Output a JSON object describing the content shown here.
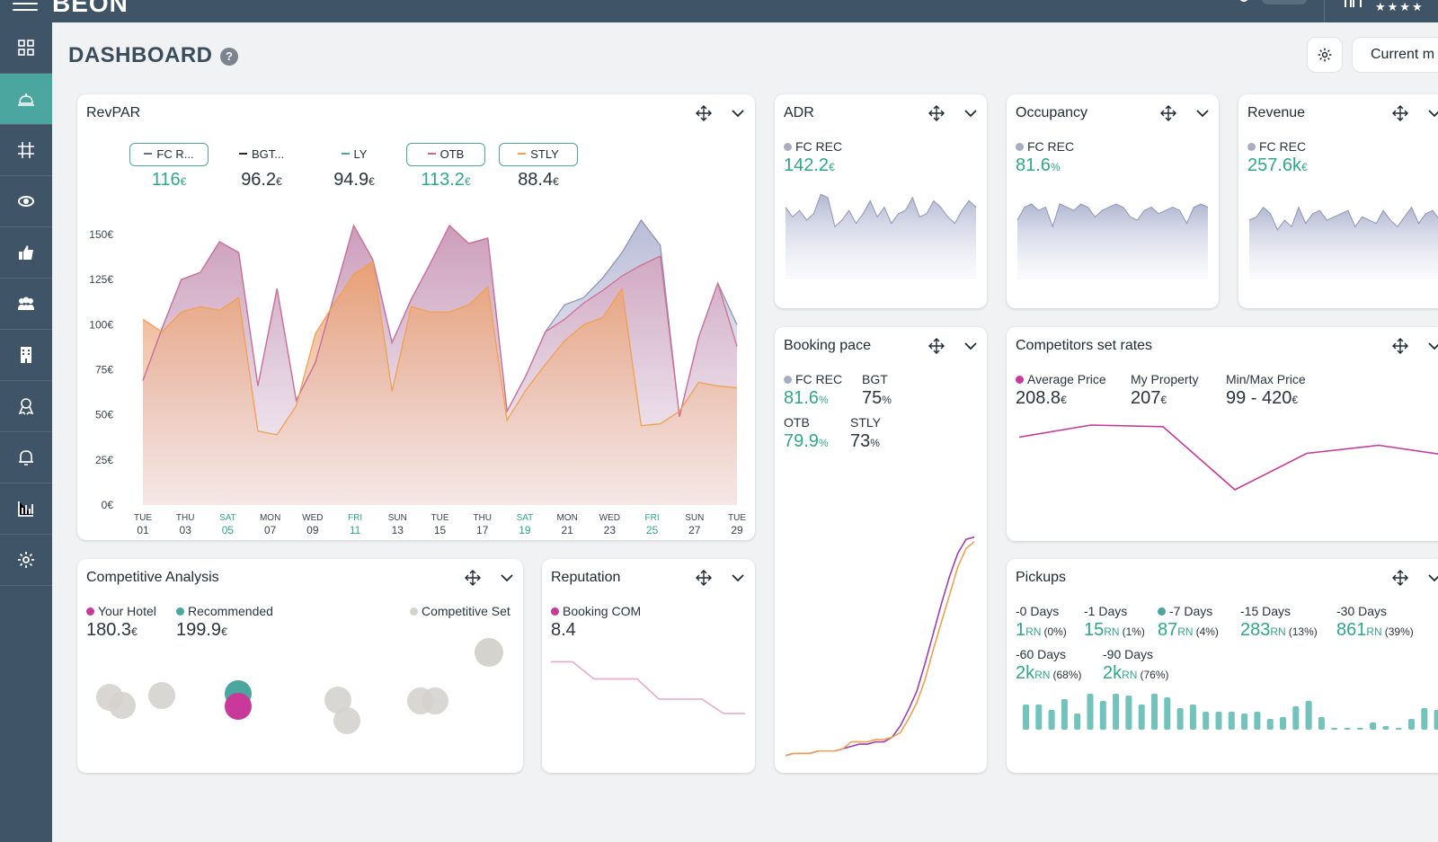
{
  "topbar": {
    "logo": "BEON",
    "stars": "★★★★"
  },
  "sidebar": {
    "items": [
      "dashboard",
      "reception-bell",
      "grid",
      "money",
      "thumbs-up",
      "users",
      "building",
      "award",
      "alarm",
      "bar-chart",
      "settings"
    ]
  },
  "header": {
    "title": "DASHBOARD",
    "help": "?",
    "current_button": "Current m"
  },
  "revpar": {
    "title": "RevPAR",
    "tabs": [
      {
        "label": "FC R...",
        "value": "116",
        "unit": "€",
        "color": "#5c6e99",
        "selected": true,
        "teal": true
      },
      {
        "label": "BGT...",
        "value": "96.2",
        "unit": "€",
        "color": "#1f2a33",
        "selected": false,
        "teal": false
      },
      {
        "label": "LY",
        "value": "94.9",
        "unit": "€",
        "color": "#4aa69f",
        "selected": false,
        "teal": false
      },
      {
        "label": "OTB",
        "value": "113.2",
        "unit": "€",
        "color": "#d0668e",
        "selected": true,
        "teal": true
      },
      {
        "label": "STLY",
        "value": "88.4",
        "unit": "€",
        "color": "#f0a050",
        "selected": true,
        "teal": false
      }
    ]
  },
  "chart_data": {
    "type": "area",
    "title": "RevPAR",
    "y_ticks": [
      "150€",
      "125€",
      "100€",
      "75€",
      "50€",
      "25€",
      "0€"
    ],
    "ylim": [
      0,
      150
    ],
    "x_ticks": [
      {
        "day": "TUE",
        "date": "01",
        "weekend": false
      },
      {
        "day": "THU",
        "date": "03",
        "weekend": false
      },
      {
        "day": "SAT",
        "date": "05",
        "weekend": true
      },
      {
        "day": "MON",
        "date": "07",
        "weekend": false
      },
      {
        "day": "WED",
        "date": "09",
        "weekend": false
      },
      {
        "day": "FRI",
        "date": "11",
        "weekend": true
      },
      {
        "day": "SUN",
        "date": "13",
        "weekend": false
      },
      {
        "day": "TUE",
        "date": "15",
        "weekend": false
      },
      {
        "day": "THU",
        "date": "17",
        "weekend": false
      },
      {
        "day": "SAT",
        "date": "19",
        "weekend": true
      },
      {
        "day": "MON",
        "date": "21",
        "weekend": false
      },
      {
        "day": "WED",
        "date": "23",
        "weekend": false
      },
      {
        "day": "FRI",
        "date": "25",
        "weekend": true
      },
      {
        "day": "SUN",
        "date": "27",
        "weekend": false
      },
      {
        "day": "TUE",
        "date": "29",
        "weekend": false
      }
    ],
    "series": [
      {
        "name": "FC REC",
        "color": "#8e95b8",
        "values": [
          69,
          98,
          125,
          129,
          146,
          140,
          66,
          120,
          58,
          79,
          117,
          155,
          136,
          90,
          114,
          134,
          155,
          145,
          148,
          52,
          72,
          96,
          111,
          115,
          126,
          140,
          158,
          144,
          49,
          93,
          123,
          100
        ]
      },
      {
        "name": "OTB",
        "color": "#d06e95",
        "values": [
          69,
          98,
          125,
          129,
          146,
          140,
          66,
          120,
          58,
          79,
          117,
          155,
          136,
          90,
          114,
          134,
          155,
          145,
          148,
          52,
          72,
          96,
          103,
          112,
          119,
          127,
          133,
          138,
          49,
          93,
          123,
          88
        ]
      },
      {
        "name": "STLY",
        "color": "#f0a050",
        "values": [
          103,
          96,
          107,
          110,
          108,
          115,
          41,
          39,
          55,
          95,
          112,
          128,
          135,
          63,
          110,
          107,
          107,
          111,
          121,
          47,
          64,
          78,
          91,
          100,
          104,
          120,
          44,
          45,
          52,
          68,
          66,
          65
        ]
      }
    ]
  },
  "adr": {
    "title": "ADR",
    "legend": "FC REC",
    "value": "142.2",
    "unit": "€",
    "spark": [
      0.3,
      0.45,
      0.35,
      0.5,
      0.4,
      0.1,
      0.15,
      0.6,
      0.5,
      0.35,
      0.55,
      0.4,
      0.2,
      0.45,
      0.3,
      0.55,
      0.4,
      0.35,
      0.15,
      0.45,
      0.4,
      0.2,
      0.3,
      0.45,
      0.55,
      0.35,
      0.2,
      0.3
    ]
  },
  "occupancy": {
    "title": "Occupancy",
    "legend": "FC REC",
    "value": "81.6",
    "unit": "%",
    "spark": [
      0.5,
      0.3,
      0.25,
      0.35,
      0.3,
      0.6,
      0.25,
      0.3,
      0.35,
      0.25,
      0.3,
      0.45,
      0.35,
      0.3,
      0.25,
      0.3,
      0.45,
      0.5,
      0.35,
      0.3,
      0.4,
      0.35,
      0.3,
      0.35,
      0.55,
      0.3,
      0.25,
      0.3
    ]
  },
  "revenue": {
    "title": "Revenue",
    "legend": "FC REC",
    "value": "257.6k",
    "unit": "€",
    "spark": [
      0.5,
      0.45,
      0.3,
      0.4,
      0.65,
      0.5,
      0.6,
      0.3,
      0.55,
      0.4,
      0.35,
      0.5,
      0.45,
      0.4,
      0.35,
      0.6,
      0.45,
      0.5,
      0.55,
      0.35,
      0.5,
      0.6,
      0.45,
      0.3,
      0.55,
      0.4,
      0.35,
      0.5
    ]
  },
  "booking_pace": {
    "title": "Booking pace",
    "stats": [
      {
        "label": "FC REC",
        "value": "81.6",
        "unit": "%",
        "teal": true,
        "dot": true
      },
      {
        "label": "BGT",
        "value": "75",
        "unit": "%",
        "teal": false,
        "dot": false
      },
      {
        "label": "OTB",
        "value": "79.9",
        "unit": "%",
        "teal": true,
        "dot": false
      },
      {
        "label": "STLY",
        "value": "73",
        "unit": "%",
        "teal": false,
        "dot": false
      }
    ],
    "series": [
      {
        "name": "OTB",
        "color": "#9c3fb0",
        "values": [
          0.02,
          0.03,
          0.03,
          0.03,
          0.04,
          0.04,
          0.04,
          0.05,
          0.06,
          0.07,
          0.07,
          0.08,
          0.08,
          0.1,
          0.15,
          0.22,
          0.3,
          0.42,
          0.55,
          0.68,
          0.8,
          0.9,
          0.96,
          0.97
        ]
      },
      {
        "name": "STLY",
        "color": "#f0a050",
        "values": [
          0.02,
          0.03,
          0.03,
          0.03,
          0.04,
          0.04,
          0.04,
          0.05,
          0.08,
          0.08,
          0.08,
          0.09,
          0.09,
          0.1,
          0.12,
          0.18,
          0.25,
          0.35,
          0.48,
          0.6,
          0.72,
          0.84,
          0.92,
          0.95
        ]
      }
    ]
  },
  "competitors": {
    "title": "Competitors set rates",
    "stats": [
      {
        "label": "Average Price",
        "value": "208.8",
        "unit": "€",
        "dot": true
      },
      {
        "label": "My Property",
        "value": "207",
        "unit": "€",
        "dot": false
      },
      {
        "label": "Min/Max Price",
        "value": "99 - 420",
        "unit": "€",
        "dot": false
      }
    ],
    "line": [
      0.25,
      0.1,
      0.12,
      0.9,
      0.45,
      0.35,
      0.48
    ]
  },
  "competitive_analysis": {
    "title": "Competitive Analysis",
    "legend": [
      {
        "label": "Your Hotel",
        "color": "#c8399a",
        "value": "180.3",
        "unit": "€"
      },
      {
        "label": "Recommended",
        "color": "#4aa69f",
        "value": "199.9",
        "unit": "€"
      }
    ],
    "set_label": "Competitive Set"
  },
  "reputation": {
    "title": "Reputation",
    "legend": "Booking COM",
    "value": "8.4",
    "line": [
      0.1,
      0.1,
      0.4,
      0.4,
      0.4,
      0.75,
      0.75,
      0.75,
      1.0,
      1.0
    ]
  },
  "pickups": {
    "title": "Pickups",
    "items": [
      {
        "label": "-0 Days",
        "value": "1",
        "unit": "RN",
        "pct": "(0%)",
        "dot": false
      },
      {
        "label": "-1 Days",
        "value": "15",
        "unit": "RN",
        "pct": "(1%)",
        "dot": false
      },
      {
        "label": "-7 Days",
        "value": "87",
        "unit": "RN",
        "pct": "(4%)",
        "dot": true
      },
      {
        "label": "-15 Days",
        "value": "283",
        "unit": "RN",
        "pct": "(13%)",
        "dot": false
      },
      {
        "label": "-30 Days",
        "value": "861",
        "unit": "RN",
        "pct": "(39%)",
        "dot": false
      },
      {
        "label": "-60 Days",
        "value": "2k",
        "unit": "RN",
        "pct": "(68%)",
        "dot": false
      },
      {
        "label": "-90 Days",
        "value": "2k",
        "unit": "RN",
        "pct": "(76%)",
        "dot": false
      }
    ],
    "bars": [
      0.7,
      0.7,
      0.55,
      0.85,
      0.45,
      1.0,
      0.8,
      1.0,
      0.95,
      0.7,
      1.0,
      0.9,
      0.6,
      0.7,
      0.5,
      0.5,
      0.5,
      0.45,
      0.5,
      0.3,
      0.35,
      0.65,
      0.8,
      0.35,
      0,
      0,
      0.05,
      0.2,
      0.1,
      0.05,
      0.3,
      0.6,
      0.55,
      1.0
    ]
  }
}
